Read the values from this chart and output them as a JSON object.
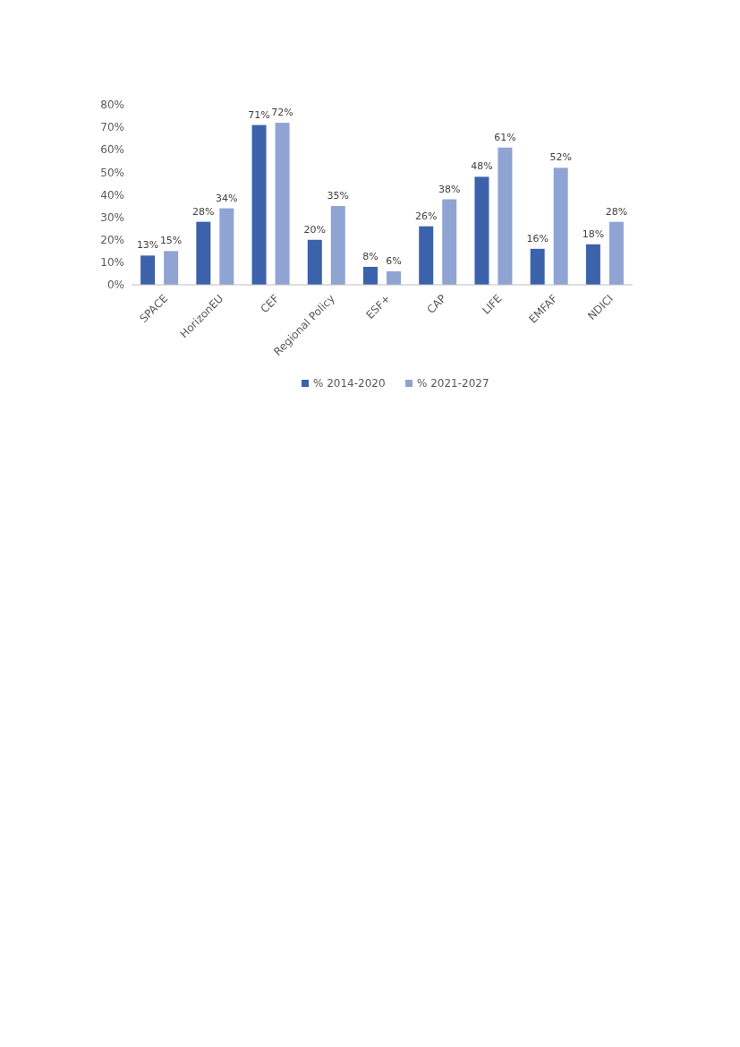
{
  "chart_data": {
    "type": "bar",
    "categories": [
      "SPACE",
      "HorizonEU",
      "CEF",
      "Regional Policy",
      "ESF+",
      "CAP",
      "LIFE",
      "EMFAF",
      "NDICI"
    ],
    "series": [
      {
        "name": "% 2014-2020",
        "color": "#3b62ab",
        "values": [
          13,
          28,
          71,
          20,
          8,
          26,
          48,
          16,
          18
        ],
        "value_labels": [
          "13%",
          "28%",
          "71%",
          "20%",
          "8%",
          "26%",
          "48%",
          "16%",
          "18%"
        ]
      },
      {
        "name": "% 2021-2027",
        "color": "#8fa4d3",
        "values": [
          15,
          34,
          72,
          35,
          6,
          38,
          61,
          52,
          28
        ],
        "value_labels": [
          "15%",
          "34%",
          "72%",
          "35%",
          "6%",
          "38%",
          "61%",
          "52%",
          "28%"
        ]
      }
    ],
    "ylim": [
      0,
      80
    ],
    "yticks": [
      {
        "value": 0,
        "label": "0%"
      },
      {
        "value": 10,
        "label": "10%"
      },
      {
        "value": 20,
        "label": "20%"
      },
      {
        "value": 30,
        "label": "30%"
      },
      {
        "value": 40,
        "label": "40%"
      },
      {
        "value": 50,
        "label": "50%"
      },
      {
        "value": 60,
        "label": "60%"
      },
      {
        "value": 70,
        "label": "70%"
      },
      {
        "value": 80,
        "label": "80%"
      }
    ],
    "legend": "bottom"
  }
}
